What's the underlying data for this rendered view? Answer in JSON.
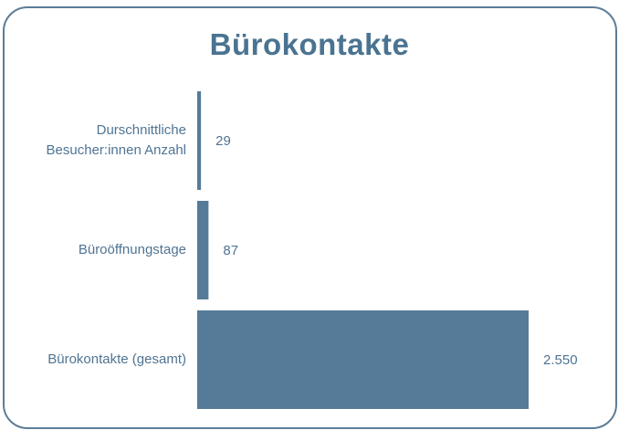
{
  "chart_data": {
    "type": "barh",
    "title": "Bürokontakte",
    "categories": [
      "Durschnittliche Besucher:innen Anzahl",
      "Büroöffnungstage",
      "Bürokontakte (gesamt)"
    ],
    "values": [
      29,
      87,
      2550
    ],
    "value_labels": [
      "29",
      "87",
      "2.550"
    ],
    "color": "#557b98"
  }
}
